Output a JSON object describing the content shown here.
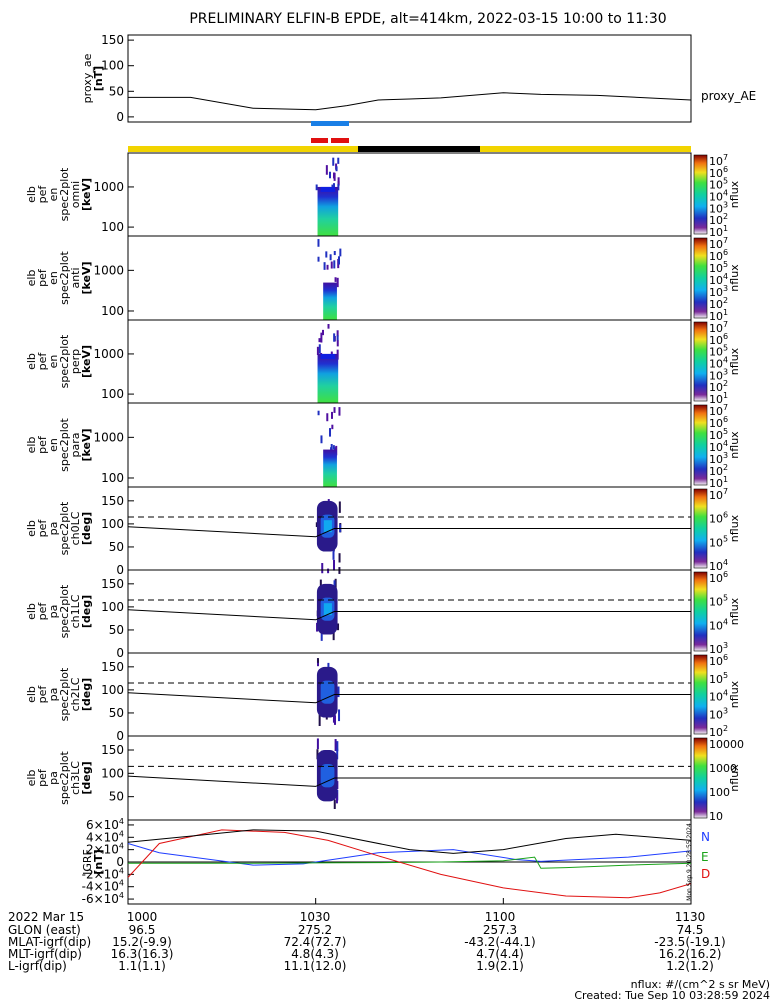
{
  "title": "PRELIMINARY ELFIN-B EPDE, alt=414km, 2022-03-15 10:00 to 11:30",
  "nflux_note": "nflux: #/(cm^2 s sr MeV)",
  "created": "Created: Tue Sep 10 03:28:59 2024",
  "sidebar_stamp": "Mon Sep 9 20:28:55 2024",
  "time_ticks": [
    "1000",
    "1030",
    "1100",
    "1130"
  ],
  "colors": {
    "n": "#1f3dff",
    "e": "#1aa31a",
    "d": "#e01010",
    "bar_yellow": "#f2d400",
    "bar_black": "#000000",
    "marker_blue": "#1a7fe6",
    "marker_red": "#e01010"
  },
  "chart_data": [
    {
      "id": "proxy_ae",
      "type": "line",
      "ylabel_lines": [
        "proxy_ae",
        "[nT]"
      ],
      "yticks": [
        "150",
        "100",
        "50",
        "0"
      ],
      "ylim": [
        -10,
        160
      ],
      "legend": "proxy_AE",
      "x_minutes": [
        0,
        10,
        20,
        30,
        35,
        40,
        45,
        50,
        60,
        66,
        75,
        90
      ],
      "values": [
        38,
        38,
        17,
        14,
        22,
        33,
        35,
        37,
        47,
        44,
        42,
        33
      ]
    },
    {
      "id": "spec_omni",
      "type": "heatmap",
      "ylabel_lines": [
        "elb",
        "pef",
        "en",
        "spec2plot",
        "omni",
        "[keV]"
      ],
      "yticks": [
        "1000",
        "100"
      ],
      "ylim": [
        60,
        7000
      ],
      "yscale": "log",
      "cbar_ticks": [
        "10^7",
        "10^6",
        "10^5",
        "10^4",
        "10^3",
        "10^2",
        "10^1"
      ],
      "cbar_label": "nflux",
      "active_window_minutes": [
        30,
        33.5
      ]
    },
    {
      "id": "spec_anti",
      "type": "heatmap",
      "ylabel_lines": [
        "elb",
        "pef",
        "en",
        "spec2plot",
        "anti",
        "[keV]"
      ],
      "yticks": [
        "1000",
        "100"
      ],
      "ylim": [
        60,
        7000
      ],
      "yscale": "log",
      "cbar_ticks": [
        "10^7",
        "10^6",
        "10^5",
        "10^4",
        "10^3",
        "10^2",
        "10^1"
      ],
      "cbar_label": "nflux",
      "active_window_minutes": [
        30,
        33.5
      ]
    },
    {
      "id": "spec_perp",
      "type": "heatmap",
      "ylabel_lines": [
        "elb",
        "pef",
        "en",
        "spec2plot",
        "perp",
        "[keV]"
      ],
      "yticks": [
        "1000",
        "100"
      ],
      "ylim": [
        60,
        7000
      ],
      "yscale": "log",
      "cbar_ticks": [
        "10^7",
        "10^6",
        "10^5",
        "10^4",
        "10^3",
        "10^2",
        "10^1"
      ],
      "cbar_label": "nflux",
      "active_window_minutes": [
        30,
        33.5
      ]
    },
    {
      "id": "spec_para",
      "type": "heatmap",
      "ylabel_lines": [
        "elb",
        "pef",
        "en",
        "spec2plot",
        "para",
        "[keV]"
      ],
      "yticks": [
        "1000",
        "100"
      ],
      "ylim": [
        60,
        7000
      ],
      "yscale": "log",
      "cbar_ticks": [
        "10^7",
        "10^6",
        "10^5",
        "10^4",
        "10^3",
        "10^2",
        "10^1"
      ],
      "cbar_label": "nflux",
      "active_window_minutes": [
        30,
        33.5
      ]
    },
    {
      "id": "pa_ch0",
      "type": "heatmap",
      "ylabel_lines": [
        "elb",
        "pef",
        "pa",
        "spec2plot",
        "ch0LC",
        "[deg]"
      ],
      "yticks": [
        "150",
        "100",
        "50",
        "0"
      ],
      "ylim": [
        0,
        180
      ],
      "cbar_ticks": [
        "10^7",
        "10^6",
        "10^5",
        "10^4"
      ],
      "cbar_label": "nflux",
      "dashed_line_deg": 115,
      "solid_line_deg": [
        [
          0,
          94
        ],
        [
          30,
          72
        ],
        [
          33,
          90
        ],
        [
          90,
          90
        ]
      ]
    },
    {
      "id": "pa_ch1",
      "type": "heatmap",
      "ylabel_lines": [
        "elb",
        "pef",
        "pa",
        "spec2plot",
        "ch1LC",
        "[deg]"
      ],
      "yticks": [
        "150",
        "100",
        "50",
        "0"
      ],
      "ylim": [
        0,
        180
      ],
      "cbar_ticks": [
        "10^6",
        "10^5",
        "10^4",
        "10^3"
      ],
      "cbar_label": "nflux",
      "dashed_line_deg": 115,
      "solid_line_deg": [
        [
          0,
          94
        ],
        [
          30,
          72
        ],
        [
          33,
          90
        ],
        [
          90,
          90
        ]
      ]
    },
    {
      "id": "pa_ch2",
      "type": "heatmap",
      "ylabel_lines": [
        "elb",
        "pef",
        "pa",
        "spec2plot",
        "ch2LC",
        "[deg]"
      ],
      "yticks": [
        "150",
        "100",
        "50",
        "0"
      ],
      "ylim": [
        0,
        180
      ],
      "cbar_ticks": [
        "10^6",
        "10^5",
        "10^4",
        "10^3",
        "10^2"
      ],
      "cbar_label": "nflux",
      "dashed_line_deg": 115,
      "solid_line_deg": [
        [
          0,
          94
        ],
        [
          30,
          72
        ],
        [
          33,
          90
        ],
        [
          90,
          90
        ]
      ]
    },
    {
      "id": "pa_ch3",
      "type": "heatmap",
      "ylabel_lines": [
        "elb",
        "pef",
        "pa",
        "spec2plot",
        "ch3LC",
        "[deg]"
      ],
      "yticks": [
        "150",
        "100",
        "50"
      ],
      "ylim": [
        0,
        180
      ],
      "cbar_ticks": [
        "10000",
        "1000",
        "100",
        "10"
      ],
      "cbar_label": "nflux",
      "dashed_line_deg": 115,
      "solid_line_deg": [
        [
          0,
          94
        ],
        [
          30,
          72
        ],
        [
          33,
          90
        ],
        [
          90,
          90
        ]
      ]
    },
    {
      "id": "igrf",
      "type": "line",
      "ylabel_lines": [
        "IGRF",
        "[nT]"
      ],
      "yticks": [
        "6×10^4",
        "4×10^4",
        "2×10^4",
        "0",
        "-2×10^4",
        "-4×10^4",
        "-6×10^4"
      ],
      "ylim": [
        -68000,
        68000
      ],
      "series": [
        {
          "name": "N",
          "x_minutes": [
            0,
            5,
            20,
            28,
            40,
            52,
            62,
            66,
            70,
            80,
            90
          ],
          "values": [
            30000,
            15000,
            -5000,
            -3000,
            15000,
            20000,
            4000,
            1000,
            3000,
            8000,
            18000
          ]
        },
        {
          "name": "E",
          "x_minutes": [
            0,
            20,
            30,
            40,
            50,
            60,
            65,
            66,
            70,
            80,
            90
          ],
          "values": [
            -2000,
            -2000,
            -1500,
            -1000,
            0,
            2000,
            8000,
            -10000,
            -9000,
            -5000,
            -2000
          ]
        },
        {
          "name": "D",
          "x_minutes": [
            0,
            5,
            15,
            25,
            32,
            40,
            50,
            60,
            70,
            80,
            85,
            90
          ],
          "values": [
            -25000,
            30000,
            52000,
            48000,
            35000,
            10000,
            -20000,
            -42000,
            -55000,
            -58000,
            -50000,
            -35000
          ]
        },
        {
          "name": "",
          "x_minutes": [
            0,
            10,
            20,
            30,
            35,
            45,
            52,
            60,
            70,
            78,
            90
          ],
          "values": [
            32000,
            42000,
            52000,
            50000,
            40000,
            20000,
            14000,
            20000,
            38000,
            45000,
            35000
          ]
        }
      ]
    }
  ],
  "info_rows": [
    {
      "label": "2022 Mar 15",
      "values": [
        "1000",
        "1030",
        "1100",
        "1130"
      ]
    },
    {
      "label": "GLON (east)",
      "values": [
        "96.5",
        "275.2",
        "257.3",
        "74.5"
      ]
    },
    {
      "label": "MLAT-igrf(dip)",
      "values": [
        "15.2(-9.9)",
        "72.4(72.7)",
        "-43.2(-44.1)",
        "-23.5(-19.1)"
      ]
    },
    {
      "label": "MLT-igrf(dip)",
      "values": [
        "16.3(16.3)",
        "4.8(4.3)",
        "4.7(4.4)",
        "16.2(16.2)"
      ]
    },
    {
      "label": "L-igrf(dip)",
      "values": [
        "1.1(1.1)",
        "11.1(12.0)",
        "1.9(2.1)",
        "1.2(1.2)"
      ]
    }
  ]
}
